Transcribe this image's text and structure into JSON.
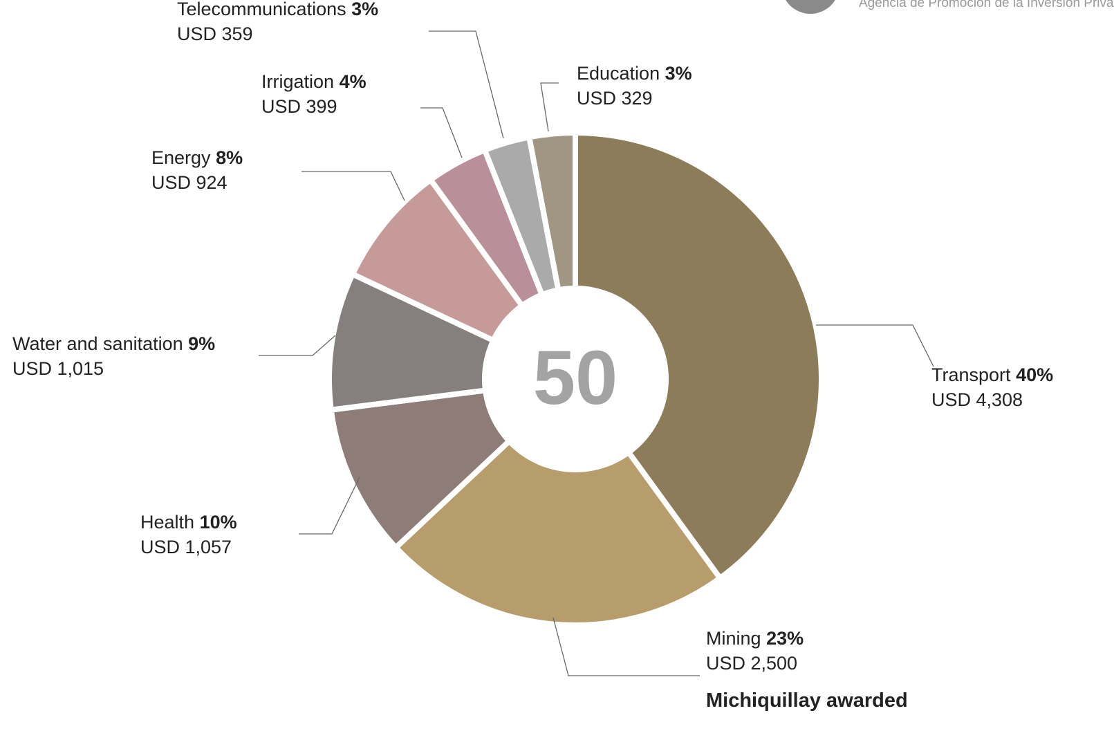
{
  "chart_data": {
    "type": "donut",
    "header_text": "Agencia de Promoción de la Inversión Privada",
    "center_text": "50",
    "categories": [
      "Transport",
      "Mining",
      "Health",
      "Water and sanitation",
      "Energy",
      "Irrigation",
      "Telecommunications",
      "Education"
    ],
    "values": [
      40,
      23,
      10,
      9,
      8,
      4,
      3,
      3
    ],
    "value_labels": [
      "40%",
      "23%",
      "10%",
      "9%",
      "8%",
      "4%",
      "3%",
      "3%"
    ],
    "amount_labels": [
      "USD 4,308",
      "USD 2,500",
      "USD 1,057",
      "USD 1,015",
      "USD 924",
      "USD 399",
      "USD 359",
      "USD 329"
    ],
    "colors": [
      "#8c7c5a",
      "#b89d6c",
      "#8e7c79",
      "#85807e",
      "#c79a9a",
      "#b98f9a",
      "#aaaaab",
      "#a09683"
    ],
    "annotation": "Michiquillay awarded"
  }
}
